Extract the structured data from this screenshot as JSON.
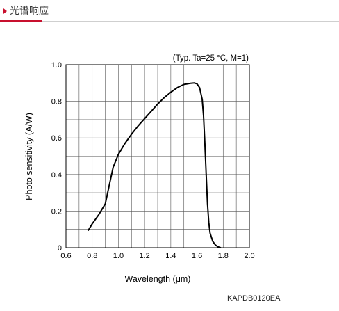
{
  "section": {
    "title": "光谱响应",
    "accent_color": "#c8102e"
  },
  "chart_data": {
    "type": "line",
    "title": "",
    "annotation": "(Typ. Ta=25 °C, M=1)",
    "xlabel": "Wavelength (μm)",
    "ylabel": "Photo sensitivity (A/W)",
    "xlim": [
      0.6,
      2.0
    ],
    "ylim": [
      0,
      1.0
    ],
    "x_ticks": [
      "0.6",
      "0.8",
      "1.0",
      "1.2",
      "1.4",
      "1.6",
      "1.8",
      "2.0"
    ],
    "y_ticks": [
      "0",
      "0.2",
      "0.4",
      "0.6",
      "0.8",
      "1.0"
    ],
    "grid": true,
    "series": [
      {
        "x": [
          0.77,
          0.8,
          0.85,
          0.9,
          0.93,
          0.96,
          1.0,
          1.05,
          1.1,
          1.15,
          1.2,
          1.25,
          1.3,
          1.35,
          1.4,
          1.45,
          1.5,
          1.55,
          1.58,
          1.6,
          1.62,
          1.64,
          1.65,
          1.66,
          1.67,
          1.68,
          1.69,
          1.7,
          1.72,
          1.74,
          1.76,
          1.78
        ],
        "y": [
          0.095,
          0.13,
          0.18,
          0.24,
          0.34,
          0.44,
          0.51,
          0.57,
          0.62,
          0.665,
          0.705,
          0.745,
          0.785,
          0.82,
          0.85,
          0.875,
          0.892,
          0.898,
          0.9,
          0.895,
          0.875,
          0.81,
          0.72,
          0.57,
          0.4,
          0.24,
          0.14,
          0.08,
          0.035,
          0.015,
          0.005,
          0.0
        ]
      }
    ]
  },
  "figure_code": "KAPDB0120EA"
}
